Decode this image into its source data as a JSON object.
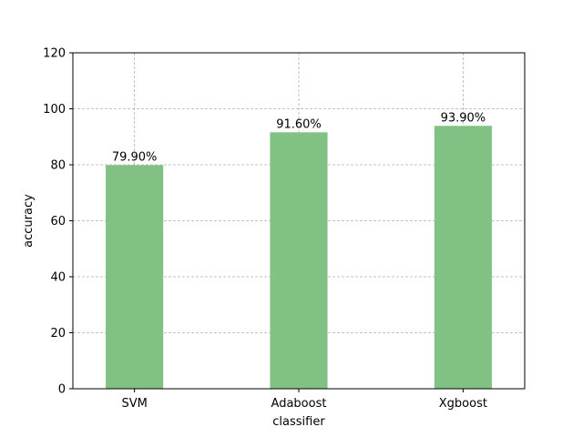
{
  "chart_data": {
    "type": "bar",
    "categories": [
      "SVM",
      "Adaboost",
      "Xgboost"
    ],
    "values": [
      79.9,
      91.6,
      93.9
    ],
    "data_labels": [
      "79.90%",
      "91.60%",
      "93.90%"
    ],
    "xlabel": "classifier",
    "ylabel": "accuracy",
    "ylim": [
      0,
      120
    ],
    "yticks": [
      0,
      20,
      40,
      60,
      80,
      100,
      120
    ],
    "grid": true,
    "bar_color": "#81c184"
  }
}
